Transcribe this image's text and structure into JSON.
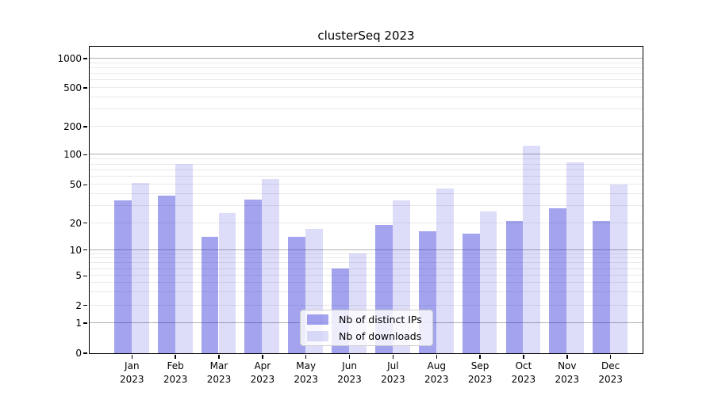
{
  "chart_data": {
    "type": "bar",
    "title": "clusterSeq 2023",
    "categories": [
      "Jan",
      "Feb",
      "Mar",
      "Apr",
      "May",
      "Jun",
      "Jul",
      "Aug",
      "Sep",
      "Oct",
      "Nov",
      "Dec"
    ],
    "x_year_label": "2023",
    "series": [
      {
        "name": "Nb of distinct IPs",
        "color": "rgba(26,26,212,0.4)",
        "color_on_white": "#a3a3ee",
        "values": [
          34,
          38,
          14,
          35,
          14,
          6,
          19,
          16,
          15,
          21,
          28,
          21
        ]
      },
      {
        "name": "Nb of downloads",
        "color": "rgba(26,26,212,0.15)",
        "color_on_white": "#dcdcf8",
        "values": [
          52,
          80,
          25,
          57,
          17,
          9,
          34,
          45,
          26,
          124,
          83,
          50
        ]
      }
    ],
    "y_ticks": [
      0,
      1,
      2,
      5,
      10,
      20,
      50,
      100,
      200,
      500,
      1000
    ],
    "y_scale": "log-like",
    "ylim": [
      0,
      1300
    ],
    "grid": {
      "major_values": [
        1,
        10,
        100,
        1000
      ],
      "major_color": "#b0b0b0",
      "minor_color": "#eaeaea"
    },
    "legend": {
      "position": "lower center",
      "border_color": "#cccccc"
    },
    "spine_color": "#000000"
  }
}
